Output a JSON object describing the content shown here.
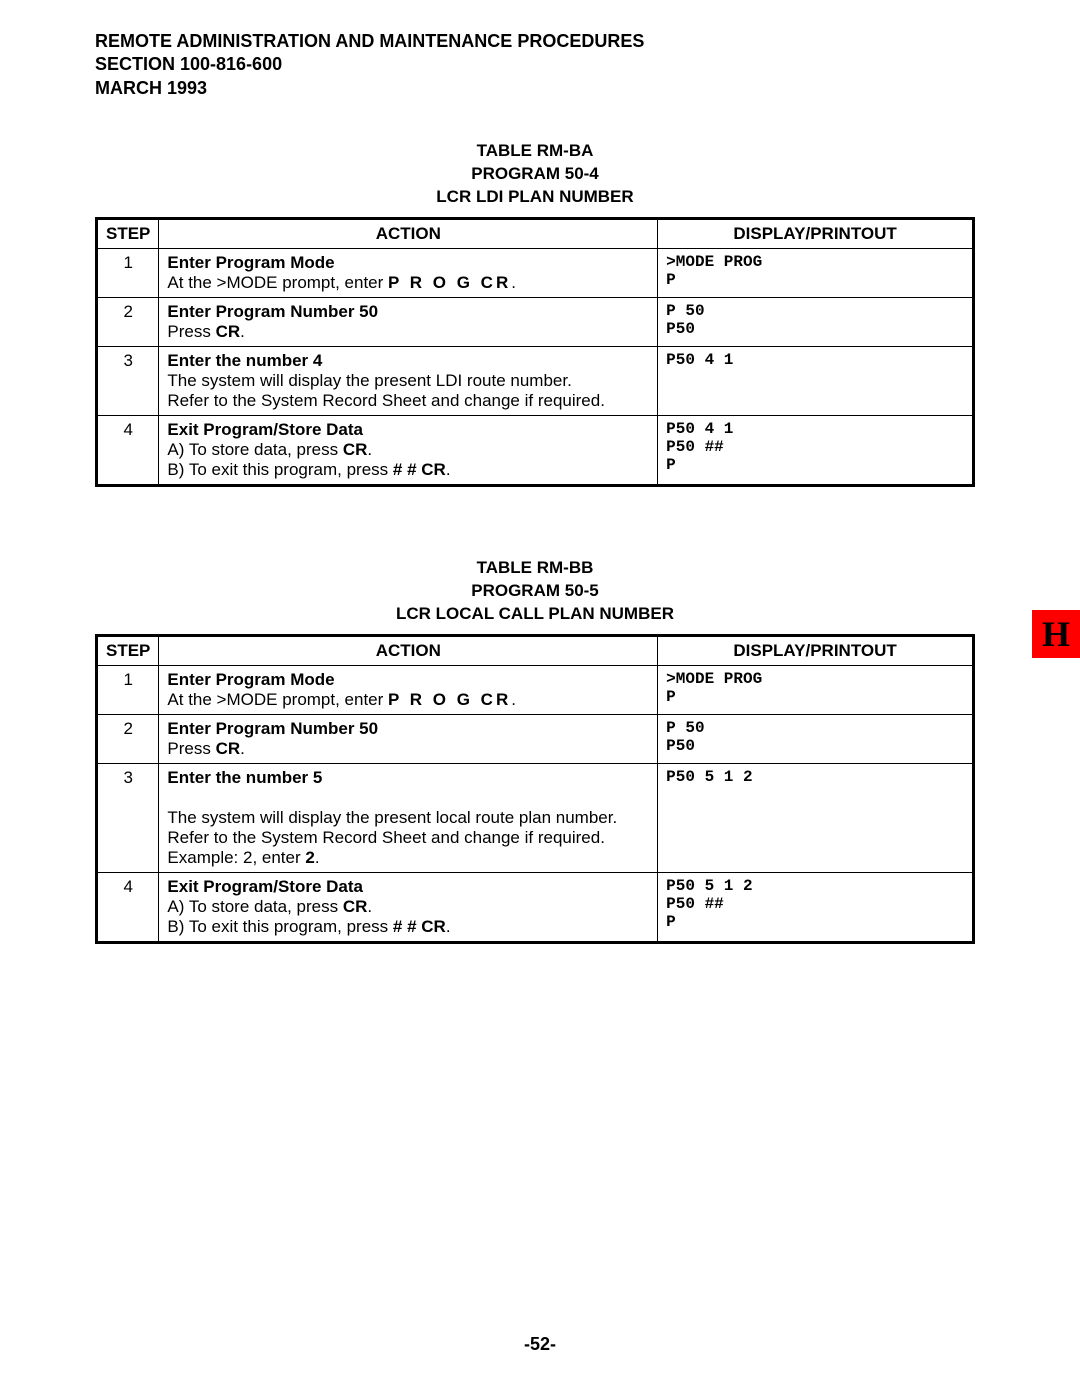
{
  "header": {
    "line1": "REMOTE ADMINISTRATION AND MAINTENANCE PROCEDURES",
    "line2": "SECTION 100-816-600",
    "line3": "MARCH 1993"
  },
  "table1": {
    "title_line1": "TABLE RM-BA",
    "title_line2": "PROGRAM 50-4",
    "title_line3": "LCR LDI PLAN NUMBER",
    "columns": {
      "step": "STEP",
      "action": "ACTION",
      "display": "DISPLAY/PRINTOUT"
    },
    "rows": [
      {
        "step": "1",
        "action_title": "Enter Program Mode",
        "action_prefix": "At the >MODE prompt, enter ",
        "action_bold_letters": "P R O G CR",
        "action_suffix": ".",
        "display": ">MODE PROG\nP"
      },
      {
        "step": "2",
        "action_title": "Enter Program Number 50",
        "action_prefix": "Press ",
        "action_bold": "CR",
        "action_suffix": ".",
        "display": "P 50\nP50"
      },
      {
        "step": "3",
        "action_title": "Enter the number 4",
        "action_body": "The system will display the present LDI route number.\nRefer to the System Record Sheet and change if required.",
        "display": "P50 4 1"
      },
      {
        "step": "4",
        "action_title": "Exit Program/Store Data",
        "action_line_a_prefix": "A)  To store data, press ",
        "action_line_a_bold": "CR",
        "action_line_a_suffix": ".",
        "action_line_b_prefix": "B)  To exit this program, press ",
        "action_line_b_bold": "# # CR",
        "action_line_b_suffix": ".",
        "display": "P50 4 1\nP50 ##\nP"
      }
    ]
  },
  "table2": {
    "title_line1": "TABLE RM-BB",
    "title_line2": "PROGRAM 50-5",
    "title_line3": "LCR LOCAL CALL PLAN NUMBER",
    "columns": {
      "step": "STEP",
      "action": "ACTION",
      "display": "DISPLAY/PRINTOUT"
    },
    "rows": [
      {
        "step": "1",
        "action_title": "Enter Program Mode",
        "action_prefix": "At the >MODE prompt, enter ",
        "action_bold_letters": "P R O G CR",
        "action_suffix": ".",
        "display": ">MODE PROG\nP"
      },
      {
        "step": "2",
        "action_title": "Enter Program Number 50",
        "action_prefix": "Press ",
        "action_bold": "CR",
        "action_suffix": ".",
        "display": "P 50\nP50"
      },
      {
        "step": "3",
        "action_title": "Enter the number 5",
        "action_body_prefix": "The system will display the present local route plan number.\nRefer to the System Record Sheet and change if required.\nExample: 2, enter ",
        "action_body_bold": "2",
        "action_body_suffix": ".",
        "display": "P50 5 1 2"
      },
      {
        "step": "4",
        "action_title": "Exit Program/Store Data",
        "action_line_a_prefix": "A)  To store data, press ",
        "action_line_a_bold": "CR",
        "action_line_a_suffix": ".",
        "action_line_b_prefix": "B)  To exit this program, press ",
        "action_line_b_bold": "# # CR",
        "action_line_b_suffix": ".",
        "display": "P50 5 1 2\nP50 ##\nP"
      }
    ]
  },
  "side_tab": "H",
  "side_tab_bg": "#ff0000",
  "page_number": "-52-"
}
